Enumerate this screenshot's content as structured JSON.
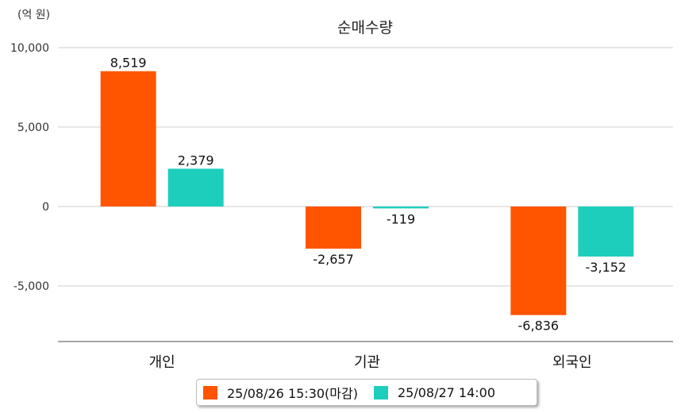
{
  "unit_label": "(억 원)",
  "chart_data": {
    "type": "bar",
    "title": "순매수량",
    "categories": [
      "개인",
      "기관",
      "외국인"
    ],
    "series": [
      {
        "name": "25/08/26 15:30(마감)",
        "color": "#FF5500",
        "values": [
          8519,
          -2657,
          -6836
        ]
      },
      {
        "name": "25/08/27 14:00",
        "color": "#1ECEBD",
        "values": [
          2379,
          -119,
          -3152
        ]
      }
    ],
    "value_labels": [
      [
        "8,519",
        "-2,657",
        "-6,836"
      ],
      [
        "2,379",
        "-119",
        "-3,152"
      ]
    ],
    "yticks": [
      10000,
      5000,
      0,
      -5000
    ],
    "ytick_labels": [
      "10,000",
      "5,000",
      "0",
      "-5,000"
    ],
    "ylim": [
      -8500,
      10000
    ],
    "grid": true,
    "legend_position": "bottom"
  }
}
